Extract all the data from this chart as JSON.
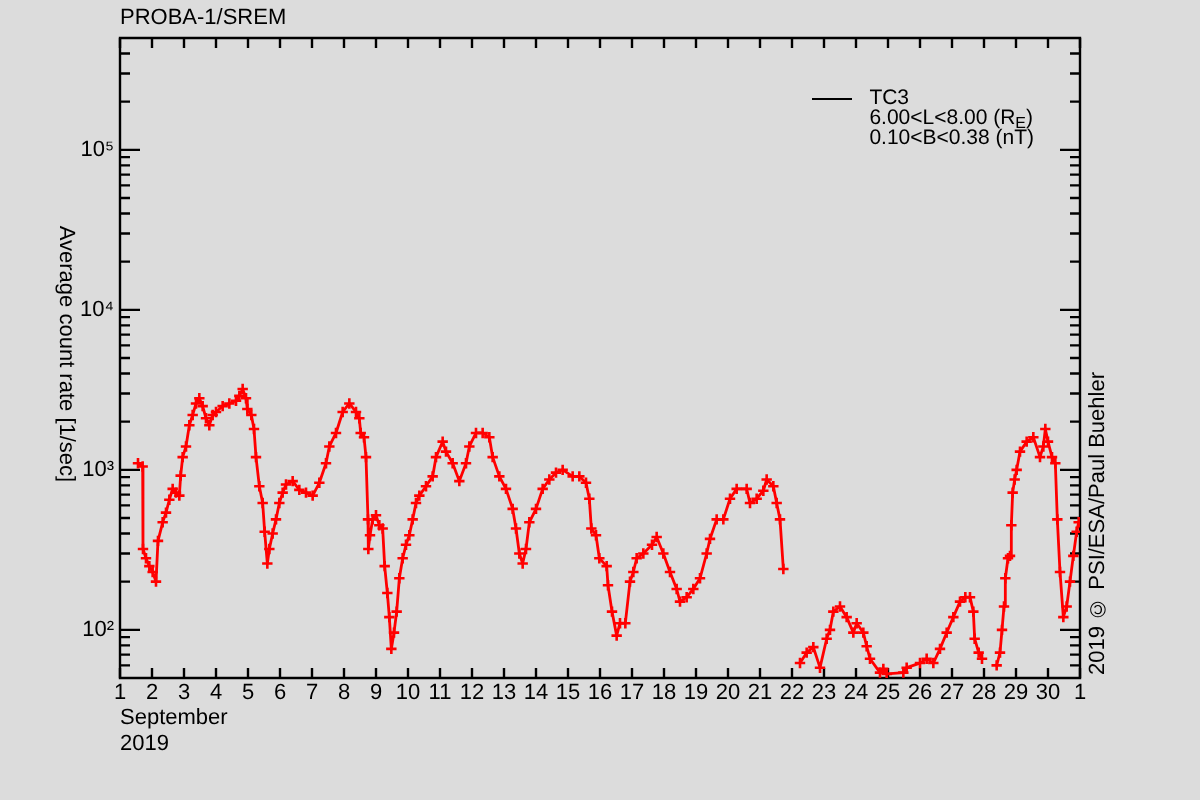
{
  "chart_data": {
    "type": "line",
    "title": "PROBA-1/SREM",
    "xlabel": "September 2019",
    "ylabel": "Average count rate [1/sec]",
    "annotations": [
      "6.00<L<8.00 (R$_{E}$)",
      "0.10<B<0.38 (nT)",
      "2019 © PSI/ESA/Paul Buehler"
    ],
    "log": true,
    "marker": "cross",
    "legend": "top right",
    "xlim": [
      "2019-09-01",
      "2019-10-01"
    ],
    "xticks": [
      {
        "value": "2019-09-01",
        "label": "1"
      },
      {
        "value": "2019-09-02",
        "label": "2"
      },
      {
        "value": "2019-09-03",
        "label": "3"
      },
      {
        "value": "2019-09-04",
        "label": "4"
      },
      {
        "value": "2019-09-05",
        "label": "5"
      },
      {
        "value": "2019-09-06",
        "label": "6"
      },
      {
        "value": "2019-09-07",
        "label": "7"
      },
      {
        "value": "2019-09-08",
        "label": "8"
      },
      {
        "value": "2019-09-09",
        "label": "9"
      },
      {
        "value": "2019-09-10",
        "label": "10"
      },
      {
        "value": "2019-09-11",
        "label": "11"
      },
      {
        "value": "2019-09-12",
        "label": "12"
      },
      {
        "value": "2019-09-13",
        "label": "13"
      },
      {
        "value": "2019-09-14",
        "label": "14"
      },
      {
        "value": "2019-09-15",
        "label": "15"
      },
      {
        "value": "2019-09-16",
        "label": "16"
      },
      {
        "value": "2019-09-17",
        "label": "17"
      },
      {
        "value": "2019-09-18",
        "label": "18"
      },
      {
        "value": "2019-09-19",
        "label": "19"
      },
      {
        "value": "2019-09-20",
        "label": "20"
      },
      {
        "value": "2019-09-21",
        "label": "21"
      },
      {
        "value": "2019-09-22",
        "label": "22"
      },
      {
        "value": "2019-09-23",
        "label": "23"
      },
      {
        "value": "2019-09-24",
        "label": "24"
      },
      {
        "value": "2019-09-25",
        "label": "25"
      },
      {
        "value": "2019-09-26",
        "label": "26"
      },
      {
        "value": "2019-09-27",
        "label": "27"
      },
      {
        "value": "2019-09-28",
        "label": "28"
      },
      {
        "value": "2019-09-29",
        "label": "29"
      },
      {
        "value": "2019-09-30",
        "label": "30"
      },
      {
        "value": "2019-10-01",
        "label": "1"
      }
    ],
    "ylim": [
      50,
      500000
    ],
    "yticks": [
      {
        "value": 60,
        "label": null
      },
      {
        "value": 70,
        "label": null
      },
      {
        "value": 80,
        "label": null
      },
      {
        "value": 90,
        "label": null
      },
      {
        "value": 100,
        "label": "10²"
      },
      {
        "value": 200,
        "label": null
      },
      {
        "value": 300,
        "label": null
      },
      {
        "value": 400,
        "label": null
      },
      {
        "value": 500,
        "label": null
      },
      {
        "value": 600,
        "label": null
      },
      {
        "value": 700,
        "label": null
      },
      {
        "value": 800,
        "label": null
      },
      {
        "value": 900,
        "label": null
      },
      {
        "value": 1000,
        "label": "10³"
      },
      {
        "value": 2000,
        "label": null
      },
      {
        "value": 3000,
        "label": null
      },
      {
        "value": 4000,
        "label": null
      },
      {
        "value": 5000,
        "label": null
      },
      {
        "value": 6000,
        "label": null
      },
      {
        "value": 7000,
        "label": null
      },
      {
        "value": 8000,
        "label": null
      },
      {
        "value": 9000,
        "label": null
      },
      {
        "value": 10000,
        "label": "10⁴"
      },
      {
        "value": 20000,
        "label": null
      },
      {
        "value": 30000,
        "label": null
      },
      {
        "value": 40000,
        "label": null
      },
      {
        "value": 50000,
        "label": null
      },
      {
        "value": 60000,
        "label": null
      },
      {
        "value": 70000,
        "label": null
      },
      {
        "value": 80000,
        "label": null
      },
      {
        "value": 90000,
        "label": null
      },
      {
        "value": 100000,
        "label": "10⁵"
      },
      {
        "value": 200000,
        "label": null
      },
      {
        "value": 300000,
        "label": null
      },
      {
        "value": 400000,
        "label": null
      }
    ],
    "series": [
      {
        "name": "TC3",
        "color": "#ff0000",
        "x": [
          "2019-09-01T13:30",
          "2019-09-01T17:00",
          "2019-09-01T17:15",
          "2019-09-01T19:30",
          "2019-09-01T22:00",
          "2019-09-02T00:30",
          "2019-09-02T03:00",
          "2019-09-02T04:30",
          "2019-09-02T08:00",
          "2019-09-02T10:30",
          "2019-09-02T13:00",
          "2019-09-02T15:30",
          "2019-09-02T18:00",
          "2019-09-02T20:30",
          "2019-09-02T21:30",
          "2019-09-02T23:00",
          "2019-09-03T01:30",
          "2019-09-03T04:00",
          "2019-09-03T06:30",
          "2019-09-03T09:00",
          "2019-09-03T11:30",
          "2019-09-03T14:00",
          "2019-09-03T16:30",
          "2019-09-03T19:00",
          "2019-09-03T21:30",
          "2019-09-04T00:00",
          "2019-09-04T05:00",
          "2019-09-04T10:00",
          "2019-09-04T15:00",
          "2019-09-04T17:30",
          "2019-09-04T20:00",
          "2019-09-04T22:30",
          "2019-09-04T23:30",
          "2019-09-05T02:30",
          "2019-09-05T04:30",
          "2019-09-05T06:00",
          "2019-09-05T08:30",
          "2019-09-05T11:00",
          "2019-09-05T12:30",
          "2019-09-05T14:30",
          "2019-09-05T16:00",
          "2019-09-05T18:30",
          "2019-09-05T21:00",
          "2019-09-05T23:30",
          "2019-09-06T02:00",
          "2019-09-06T04:30",
          "2019-09-06T09:30",
          "2019-09-06T14:30",
          "2019-09-06T19:30",
          "2019-09-07T00:30",
          "2019-09-07T05:30",
          "2019-09-07T10:30",
          "2019-09-07T13:00",
          "2019-09-07T18:00",
          "2019-09-07T23:00",
          "2019-09-08T04:00",
          "2019-09-08T09:00",
          "2019-09-08T11:30",
          "2019-09-08T12:30",
          "2019-09-08T15:00",
          "2019-09-08T16:30",
          "2019-09-08T18:00",
          "2019-09-08T18:15",
          "2019-09-08T19:30",
          "2019-09-08T21:30",
          "2019-09-09T00:00",
          "2019-09-09T02:30",
          "2019-09-09T05:00",
          "2019-09-09T06:30",
          "2019-09-09T08:30",
          "2019-09-09T10:00",
          "2019-09-09T11:30",
          "2019-09-09T13:30",
          "2019-09-09T15:30",
          "2019-09-09T17:30",
          "2019-09-09T20:00",
          "2019-09-09T22:30",
          "2019-09-10T01:00",
          "2019-09-10T03:30",
          "2019-09-10T06:00",
          "2019-09-10T08:30",
          "2019-09-10T13:30",
          "2019-09-10T18:30",
          "2019-09-10T21:00",
          "2019-09-11T02:00",
          "2019-09-11T04:30",
          "2019-09-11T09:30",
          "2019-09-11T14:30",
          "2019-09-11T19:30",
          "2019-09-11T22:00",
          "2019-09-12T03:00",
          "2019-09-12T08:00",
          "2019-09-12T13:00",
          "2019-09-12T15:30",
          "2019-09-12T20:30",
          "2019-09-13T01:30",
          "2019-09-13T06:30",
          "2019-09-13T09:00",
          "2019-09-13T11:30",
          "2019-09-13T14:00",
          "2019-09-13T16:30",
          "2019-09-13T19:00",
          "2019-09-14T00:00",
          "2019-09-14T05:00",
          "2019-09-14T10:00",
          "2019-09-14T15:00",
          "2019-09-14T20:00",
          "2019-09-15T03:30",
          "2019-09-15T08:30",
          "2019-09-15T13:30",
          "2019-09-15T16:00",
          "2019-09-15T17:30",
          "2019-09-15T21:00",
          "2019-09-15T23:30",
          "2019-09-16T05:00",
          "2019-09-16T06:00",
          "2019-09-16T09:00",
          "2019-09-16T12:30",
          "2019-09-16T15:00",
          "2019-09-16T19:00",
          "2019-09-16T22:30",
          "2019-09-17T01:00",
          "2019-09-17T03:30",
          "2019-09-17T08:30",
          "2019-09-17T15:00",
          "2019-09-17T18:30",
          "2019-09-17T23:30",
          "2019-09-18T04:30",
          "2019-09-18T09:30",
          "2019-09-18T12:00",
          "2019-09-18T17:00",
          "2019-09-18T22:00",
          "2019-09-19T03:00",
          "2019-09-19T08:00",
          "2019-09-19T10:30",
          "2019-09-19T15:30",
          "2019-09-19T20:30",
          "2019-09-20T01:30",
          "2019-09-20T06:30",
          "2019-09-20T14:00",
          "2019-09-20T16:30",
          "2019-09-20T21:30",
          "2019-09-21T02:30",
          "2019-09-21T05:00",
          "2019-09-21T10:00",
          "2019-09-21T12:30",
          "2019-09-21T15:00",
          "2019-09-21T17:30",
          "2019-09-21T18:30",
          "2019-09-22T06:00",
          "2019-09-22T11:00",
          "2019-09-22T16:00",
          "2019-09-22T21:00",
          "2019-09-23T02:00",
          "2019-09-23T04:30",
          "2019-09-23T07:00",
          "2019-09-23T12:00",
          "2019-09-23T17:00",
          "2019-09-23T22:00",
          "2019-09-24T00:30",
          "2019-09-24T05:30",
          "2019-09-24T08:00",
          "2019-09-24T10:30",
          "2019-09-24T18:00",
          "2019-09-24T20:30",
          "2019-09-24T23:00",
          "2019-09-25T11:30",
          "2019-09-25T14:00",
          "2019-09-26T00:00",
          "2019-09-26T05:00",
          "2019-09-26T10:00",
          "2019-09-26T15:00",
          "2019-09-26T20:00",
          "2019-09-27T01:00",
          "2019-09-27T06:00",
          "2019-09-27T10:00",
          "2019-09-27T13:30",
          "2019-09-27T16:00",
          "2019-09-27T17:00",
          "2019-09-27T20:00",
          "2019-09-27T22:30",
          "2019-09-28T02:00",
          "2019-09-28T09:30",
          "2019-09-28T12:00",
          "2019-09-28T13:30",
          "2019-09-28T15:00",
          "2019-09-28T16:00",
          "2019-09-28T18:00",
          "2019-09-28T19:30",
          "2019-09-28T20:30",
          "2019-09-28T21:30",
          "2019-09-28T23:00",
          "2019-09-29T00:30",
          "2019-09-29T03:00",
          "2019-09-29T08:00",
          "2019-09-29T13:00",
          "2019-09-29T18:00",
          "2019-09-29T20:30",
          "2019-09-29T22:00",
          "2019-09-30T00:00",
          "2019-09-30T03:00",
          "2019-09-30T05:30",
          "2019-09-30T07:00",
          "2019-09-30T09:00",
          "2019-09-30T11:30",
          "2019-09-30T14:00",
          "2019-09-30T16:30",
          "2019-09-30T19:00",
          "2019-09-30T21:30",
          "2019-09-30T23:00"
        ],
        "values": [
          1100,
          1050,
          320,
          280,
          250,
          230,
          200,
          360,
          470,
          540,
          650,
          760,
          720,
          690,
          920,
          1200,
          1400,
          1900,
          2200,
          2600,
          2800,
          2500,
          2100,
          1900,
          2200,
          2300,
          2500,
          2600,
          2700,
          2900,
          3200,
          2800,
          2400,
          2200,
          1800,
          1200,
          790,
          620,
          410,
          260,
          320,
          400,
          490,
          620,
          720,
          810,
          850,
          750,
          720,
          690,
          830,
          1100,
          1400,
          1700,
          2300,
          2600,
          2300,
          2100,
          1700,
          1600,
          1200,
          490,
          320,
          390,
          490,
          520,
          450,
          430,
          250,
          170,
          120,
          76,
          96,
          130,
          210,
          280,
          340,
          390,
          490,
          620,
          690,
          790,
          910,
          1200,
          1500,
          1300,
          1100,
          850,
          1100,
          1400,
          1700,
          1700,
          1600,
          1200,
          910,
          760,
          570,
          430,
          300,
          260,
          320,
          470,
          570,
          760,
          870,
          960,
          1000,
          910,
          910,
          830,
          660,
          430,
          390,
          280,
          250,
          190,
          130,
          92,
          110,
          110,
          200,
          230,
          280,
          300,
          340,
          380,
          300,
          230,
          180,
          150,
          160,
          180,
          210,
          300,
          370,
          490,
          490,
          660,
          760,
          760,
          620,
          660,
          740,
          870,
          790,
          620,
          490,
          240,
          null,
          62,
          72,
          78,
          58,
          88,
          100,
          130,
          140,
          120,
          96,
          110,
          96,
          79,
          66,
          54,
          57,
          53,
          54,
          58,
          62,
          66,
          62,
          76,
          96,
          120,
          150,
          160,
          160,
          130,
          88,
          72,
          66,
          null,
          60,
          72,
          100,
          140,
          210,
          280,
          290,
          450,
          720,
          870,
          1000,
          1300,
          1500,
          1600,
          1200,
          1400,
          1800,
          1500,
          1200,
          1100,
          490,
          230,
          120,
          140,
          200,
          290,
          410,
          470
        ]
      }
    ]
  }
}
